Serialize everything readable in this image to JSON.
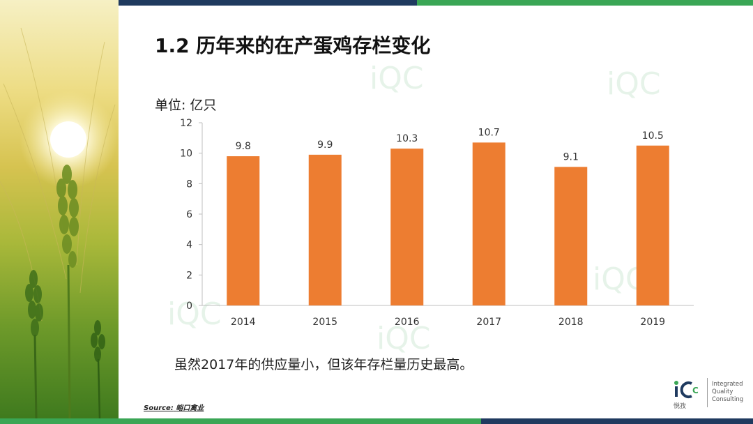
{
  "slide": {
    "title": "1.2 历年来的在产蛋鸡存栏变化",
    "unit_label": "单位: 亿只",
    "caption": "虽然2017年的供应量小，但该年存栏量历史最高。",
    "source_prefix": "Source:",
    "source_name": "峪口禽业"
  },
  "logo": {
    "mark": "iQC",
    "chinese_name": "悦孜",
    "line1": "Integrated",
    "line2": "Quality",
    "line3": "Consulting"
  },
  "colors": {
    "bar": "#ED7D31",
    "accent_green": "#3aa655",
    "accent_navy": "#1f3a5f"
  },
  "chart_data": {
    "type": "bar",
    "categories": [
      "2014",
      "2015",
      "2016",
      "2017",
      "2018",
      "2019"
    ],
    "values": [
      9.8,
      9.9,
      10.3,
      10.7,
      9.1,
      10.5
    ],
    "ylim": [
      0,
      12
    ],
    "yticks": [
      0,
      2,
      4,
      6,
      8,
      10,
      12
    ],
    "grid": false,
    "legend": "none",
    "data_labels": true
  }
}
